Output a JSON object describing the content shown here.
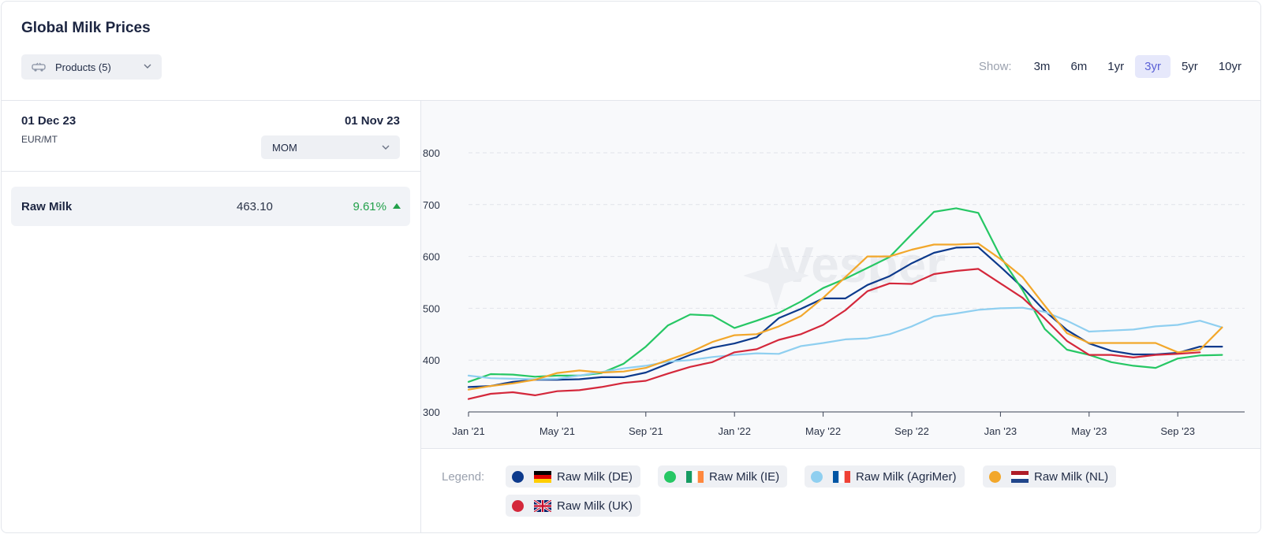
{
  "title": "Global Milk Prices",
  "products_label": "Products (5)",
  "show_label": "Show:",
  "ranges": [
    "3m",
    "6m",
    "1yr",
    "3yr",
    "5yr",
    "10yr"
  ],
  "active_range": "3yr",
  "left": {
    "date_from": "01 Dec 23",
    "unit": "EUR/MT",
    "date_to": "01 Nov 23",
    "compare": "MOM",
    "rows": [
      {
        "name": "Raw Milk",
        "value": "463.10",
        "change": "9.61%",
        "direction": "up",
        "change_color": "#22a04a"
      }
    ]
  },
  "legend_label": "Legend:",
  "watermark": "Vesper",
  "chart_data": {
    "type": "line",
    "ylim": [
      300,
      800
    ],
    "yticks": [
      300,
      400,
      500,
      600,
      700,
      800
    ],
    "x_start": "Jan '21",
    "xticks": [
      "Jan '21",
      "May '21",
      "Sep '21",
      "Jan '22",
      "May '22",
      "Sep '22",
      "Jan '23",
      "May '23",
      "Sep '23"
    ],
    "grid": true,
    "series": [
      {
        "name": "Raw Milk (DE)",
        "color": "#0d3a8c",
        "flag": "de",
        "values": [
          348,
          350,
          358,
          362,
          362,
          363,
          367,
          367,
          376,
          393,
          410,
          424,
          432,
          444,
          481,
          499,
          519,
          519,
          545,
          562,
          587,
          607,
          617,
          618,
          580,
          540,
          495,
          458,
          432,
          418,
          411,
          411,
          414,
          426,
          426
        ]
      },
      {
        "name": "Raw Milk (IE)",
        "color": "#26c764",
        "flag": "ie",
        "values": [
          358,
          373,
          372,
          368,
          370,
          370,
          375,
          393,
          426,
          467,
          488,
          486,
          462,
          476,
          491,
          513,
          539,
          557,
          578,
          599,
          643,
          686,
          693,
          684,
          600,
          535,
          460,
          420,
          410,
          396,
          389,
          385,
          403,
          409,
          410
        ]
      },
      {
        "name": "Raw Milk (AgriMer)",
        "color": "#8fcff0",
        "flag": "fr",
        "values": [
          370,
          365,
          364,
          363,
          364,
          370,
          377,
          384,
          389,
          397,
          400,
          406,
          410,
          413,
          412,
          427,
          433,
          440,
          442,
          450,
          465,
          484,
          490,
          497,
          500,
          501,
          493,
          476,
          455,
          457,
          459,
          465,
          468,
          476,
          463
        ]
      },
      {
        "name": "Raw Milk (NL)",
        "color": "#f2a72b",
        "flag": "nl",
        "values": [
          343,
          350,
          355,
          362,
          375,
          380,
          376,
          378,
          385,
          400,
          415,
          435,
          448,
          450,
          465,
          485,
          520,
          560,
          600,
          600,
          613,
          623,
          623,
          625,
          595,
          560,
          505,
          452,
          433,
          433,
          433,
          433,
          415,
          420,
          463
        ]
      },
      {
        "name": "Raw Milk (UK)",
        "color": "#d4283b",
        "flag": "uk",
        "values": [
          325,
          335,
          338,
          332,
          340,
          342,
          348,
          356,
          360,
          374,
          387,
          396,
          415,
          421,
          439,
          450,
          468,
          496,
          533,
          548,
          547,
          566,
          572,
          576,
          548,
          520,
          480,
          437,
          410,
          410,
          405,
          410,
          412,
          415,
          null
        ]
      }
    ]
  }
}
